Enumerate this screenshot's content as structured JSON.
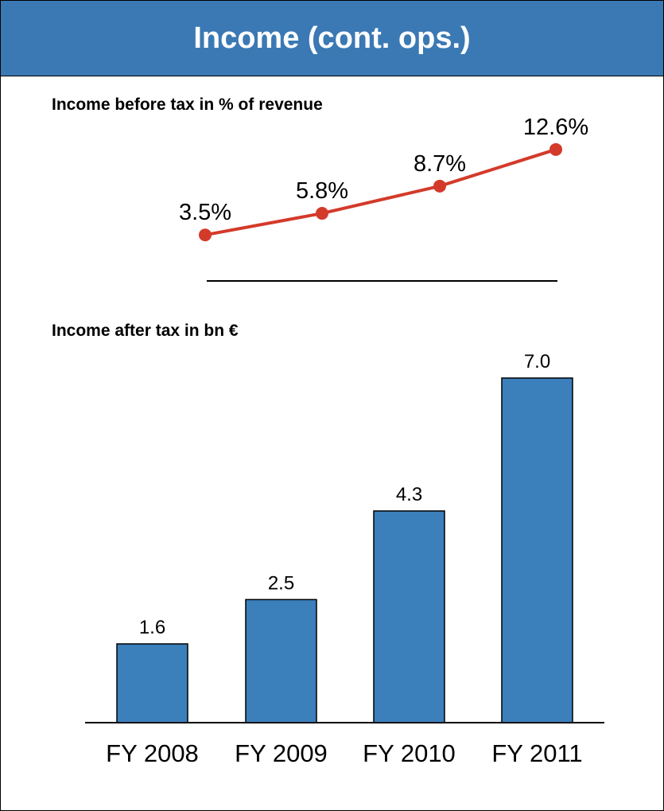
{
  "header": {
    "title": "Income (cont. ops.)"
  },
  "colors": {
    "header_bg": "#3b79b4",
    "line": "#d43a2a",
    "bar": "#3b7fbb"
  },
  "chart_data": [
    {
      "type": "line",
      "title": "Income before tax in % of revenue",
      "categories": [
        "FY 2008",
        "FY 2009",
        "FY 2010",
        "FY 2011"
      ],
      "values": [
        3.5,
        5.8,
        8.7,
        12.6
      ],
      "value_labels": [
        "3.5%",
        "5.8%",
        "8.7%",
        "12.6%"
      ],
      "unit": "%"
    },
    {
      "type": "bar",
      "title": "Income after tax in bn €",
      "categories": [
        "FY 2008",
        "FY 2009",
        "FY 2010",
        "FY 2011"
      ],
      "values": [
        1.6,
        2.5,
        4.3,
        7.0
      ],
      "value_labels": [
        "1.6",
        "2.5",
        "4.3",
        "7.0"
      ],
      "ylim": [
        0,
        7.0
      ]
    }
  ]
}
